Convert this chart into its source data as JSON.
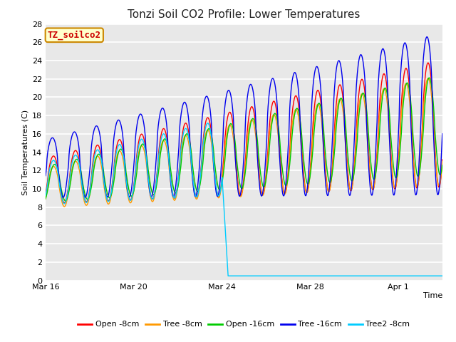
{
  "title": "Tonzi Soil CO2 Profile: Lower Temperatures",
  "xlabel": "Time",
  "ylabel": "Soil Temperatures (C)",
  "ylim": [
    0,
    28
  ],
  "yticks": [
    0,
    2,
    4,
    6,
    8,
    10,
    12,
    14,
    16,
    18,
    20,
    22,
    24,
    26,
    28
  ],
  "plot_bg_color": "#e8e8e8",
  "fig_bg_color": "#ffffff",
  "grid_color": "#ffffff",
  "label_box_text": "TZ_soilco2",
  "label_box_facecolor": "#ffffcc",
  "label_box_edgecolor": "#cc8800",
  "label_box_textcolor": "#cc0000",
  "series_colors": {
    "open8": "#ff0000",
    "tree8": "#ff9900",
    "open16": "#00cc00",
    "tree16": "#0000ee",
    "tree2_8": "#00ccff"
  },
  "legend_labels": [
    "Open -8cm",
    "Tree -8cm",
    "Open -16cm",
    "Tree -16cm",
    "Tree2 -8cm"
  ],
  "xtick_labels": [
    "Mar 16",
    "Mar 20",
    "Mar 24",
    "Mar 28",
    "Apr 1"
  ],
  "xtick_positions": [
    0,
    4,
    8,
    12,
    16
  ],
  "num_days": 18,
  "pts_per_day": 48,
  "cyan_drop_day": 8
}
